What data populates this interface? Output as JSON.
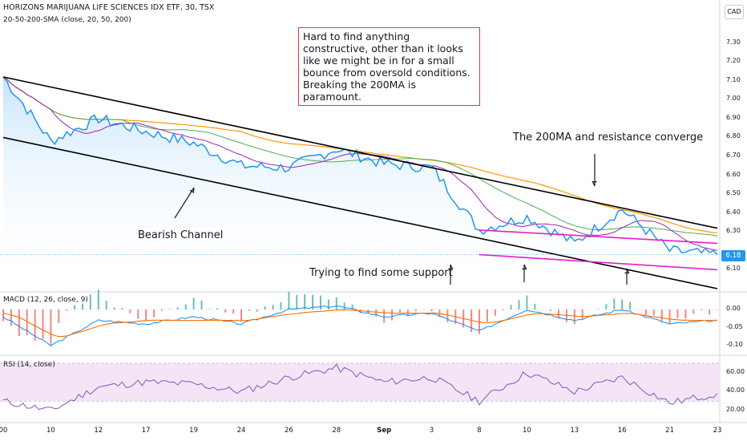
{
  "header": {
    "title": "HORIZONS MARIJUANA LIFE SCIENCES IDX ETF, 30, TSX",
    "indicator": "20-50-200-SMA (close, 20, 50, 200)",
    "currency": "CAD"
  },
  "annotations": {
    "note": "Hard to find anything constructive, other than it looks like we might be in for a small bounce from oversold conditions. Breaking the 200MA is paramount.",
    "converge": "The 200MA and resistance converge",
    "channel": "Bearish Channel",
    "support": "Trying to find some support"
  },
  "panes": {
    "macd_title": "MACD (12, 26, close, 9)",
    "rsi_title": "RSI (14, close)"
  },
  "colors": {
    "price": "#2196f3",
    "sma20": "#9c27b0",
    "sma50": "#4caf50",
    "sma200": "#ff9800",
    "channel": "#000000",
    "support_lines": "#e91ec8",
    "macd": "#2196f3",
    "signal": "#ff6d00",
    "rsi": "#7e57c2",
    "rsi_band": "#f3e5f5",
    "note_border": "#e53935"
  },
  "chart_data": [
    {
      "type": "line",
      "pane": "price",
      "title": "HORIZONS MARIJUANA LIFE SCIENCES IDX ETF, 30, TSX",
      "x": [
        "00",
        "10",
        "12",
        "17",
        "19",
        "24",
        "26",
        "28",
        "Sep",
        "3",
        "8",
        "10",
        "13",
        "16",
        "21",
        "23"
      ],
      "xticks": [
        "00",
        "10",
        "12",
        "17",
        "19",
        "24",
        "26",
        "28",
        "Sep",
        "3",
        "8",
        "10",
        "13",
        "16",
        "21",
        "23"
      ],
      "ylim": [
        6.0,
        7.4
      ],
      "yticks": [
        "7.30",
        "7.20",
        "7.10",
        "7.00",
        "6.90",
        "6.80",
        "6.70",
        "6.60",
        "6.50",
        "6.40",
        "6.30",
        "6.18",
        "6.10"
      ],
      "last_price": "6.18",
      "series": [
        {
          "name": "close",
          "values": [
            7.12,
            6.78,
            6.9,
            6.83,
            6.77,
            6.65,
            6.64,
            6.74,
            6.66,
            6.64,
            6.31,
            6.38,
            6.24,
            6.42,
            6.2,
            6.18
          ]
        }
      ],
      "channel_upper": [
        [
          0,
          7.12
        ],
        [
          15,
          6.32
        ]
      ],
      "channel_lower": [
        [
          0,
          6.8
        ],
        [
          15,
          6.0
        ]
      ],
      "support_upper": [
        [
          10,
          6.31
        ],
        [
          15,
          6.24
        ]
      ],
      "support_lower": [
        [
          10,
          6.18
        ],
        [
          15,
          6.1
        ]
      ]
    },
    {
      "type": "line",
      "pane": "macd",
      "title": "MACD (12, 26, close, 9)",
      "ylim": [
        -0.12,
        0.04
      ],
      "yticks": [
        "0.00",
        "-0.05",
        "-0.10"
      ],
      "series": [
        {
          "name": "MACD",
          "values": [
            -0.02,
            -0.1,
            -0.03,
            -0.04,
            -0.02,
            -0.04,
            0.0,
            0.01,
            -0.02,
            -0.01,
            -0.06,
            0.0,
            -0.03,
            0.0,
            -0.04,
            -0.03
          ]
        },
        {
          "name": "Signal",
          "values": [
            -0.01,
            -0.08,
            -0.04,
            -0.03,
            -0.03,
            -0.03,
            -0.01,
            0.0,
            -0.01,
            -0.01,
            -0.04,
            -0.01,
            -0.02,
            -0.01,
            -0.03,
            -0.03
          ]
        }
      ]
    },
    {
      "type": "line",
      "pane": "rsi",
      "title": "RSI (14, close)",
      "ylim": [
        10,
        75
      ],
      "yticks": [
        "60.00",
        "40.00",
        "20.00"
      ],
      "band": [
        30,
        70
      ],
      "series": [
        {
          "name": "RSI",
          "values": [
            30,
            20,
            45,
            50,
            48,
            40,
            55,
            65,
            50,
            55,
            30,
            60,
            40,
            55,
            28,
            38
          ]
        }
      ]
    }
  ]
}
